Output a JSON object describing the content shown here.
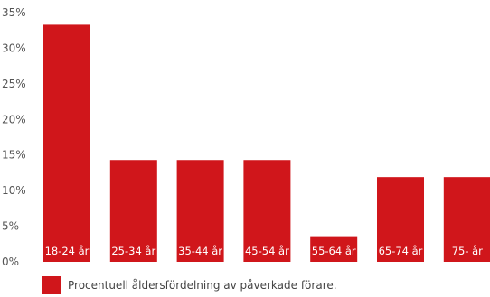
{
  "chart_data": {
    "type": "bar",
    "categories": [
      "18-24 år",
      "25-34 år",
      "35-44 år",
      "45-54 år",
      "55-64 år",
      "65-74 år",
      "75- år"
    ],
    "values": [
      33.3,
      14.3,
      14.3,
      14.3,
      3.6,
      11.9,
      11.9
    ],
    "ylim": [
      0,
      35
    ],
    "yticks": [
      "0%",
      "5%",
      "10%",
      "15%",
      "20%",
      "25%",
      "30%",
      "35%"
    ],
    "grid": false,
    "legend": {
      "label": "Procentuell åldersfördelning av påverkade förare.",
      "placement": "bottom-left"
    },
    "colors": {
      "bar": "#d0161b"
    }
  }
}
